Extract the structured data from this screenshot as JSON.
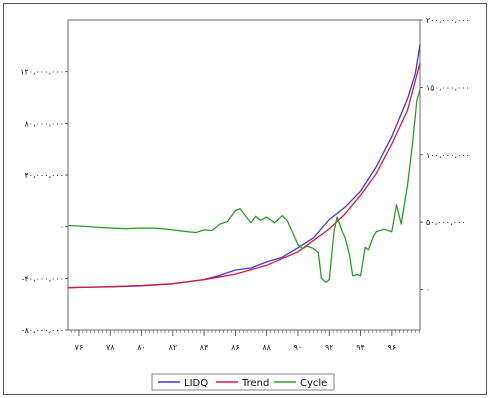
{
  "chart_data": {
    "type": "line",
    "title": "",
    "xlabel": "",
    "ylabel": "",
    "grid": false,
    "legend_position": "bottom",
    "x": [
      76,
      78,
      80,
      82,
      84,
      86,
      88,
      90,
      92,
      94,
      96,
      97
    ],
    "x_ticks": [
      "۷۶",
      "۷۸",
      "۸۰",
      "۸۲",
      "۸۴",
      "۸۶",
      "۸۸",
      "۹۰",
      "۹۲",
      "۹۴",
      "۹۶"
    ],
    "x_tick_values": [
      76,
      78,
      80,
      82,
      84,
      86,
      88,
      90,
      92,
      94,
      96
    ],
    "xlim": [
      75.3,
      97.8
    ],
    "left_axis": {
      "ylim": [
        -80000000,
        160000000
      ],
      "ticks": [
        {
          "v": 120000000,
          "label": "۱۲۰،۰۰۰،۰۰۰"
        },
        {
          "v": 80000000,
          "label": "۸۰،۰۰۰،۰۰۰"
        },
        {
          "v": 40000000,
          "label": "۴۰،۰۰۰،۰۰۰"
        },
        {
          "v": 0,
          "label": "۰"
        },
        {
          "v": -40000000,
          "label": "-۴۰،۰۰۰،۰۰۰"
        },
        {
          "v": -80000000,
          "label": "-۸۰،۰۰۰،۰۰۰"
        }
      ]
    },
    "right_axis": {
      "ylim": [
        -30000000,
        200000000
      ],
      "ticks": [
        {
          "v": 200000000,
          "label": "۲۰۰،۰۰۰،۰۰۰"
        },
        {
          "v": 150000000,
          "label": "۱۵۰،۰۰۰،۰۰۰"
        },
        {
          "v": 100000000,
          "label": "۱۰۰،۰۰۰،۰۰۰"
        },
        {
          "v": 50000000,
          "label": "۵۰،۰۰۰،۰۰۰"
        },
        {
          "v": 0,
          "label": "۰"
        }
      ]
    },
    "series": [
      {
        "name": "LIDQ",
        "axis": "right",
        "color": "#3b3bd6",
        "points": [
          [
            75.3,
            1500000
          ],
          [
            76,
            1700000
          ],
          [
            78,
            2000000
          ],
          [
            80,
            2700000
          ],
          [
            82,
            4200000
          ],
          [
            84,
            7500000
          ],
          [
            85,
            10500000
          ],
          [
            86,
            14500000
          ],
          [
            87,
            16000000
          ],
          [
            88,
            20500000
          ],
          [
            89,
            24000000
          ],
          [
            90,
            31000000
          ],
          [
            91,
            38500000
          ],
          [
            92,
            52000000
          ],
          [
            93,
            61000000
          ],
          [
            94,
            73000000
          ],
          [
            95,
            91000000
          ],
          [
            96,
            113500000
          ],
          [
            97,
            141500000
          ],
          [
            97.5,
            160000000
          ],
          [
            97.8,
            182000000
          ]
        ]
      },
      {
        "name": "Trend",
        "axis": "right",
        "color": "#d81b3b",
        "points": [
          [
            75.3,
            1200000
          ],
          [
            76,
            1500000
          ],
          [
            78,
            2200000
          ],
          [
            80,
            3000000
          ],
          [
            82,
            4400000
          ],
          [
            84,
            7300000
          ],
          [
            86,
            11500000
          ],
          [
            88,
            18000000
          ],
          [
            90,
            28000000
          ],
          [
            92,
            45000000
          ],
          [
            93,
            56000000
          ],
          [
            94,
            70000000
          ],
          [
            95,
            86000000
          ],
          [
            96,
            108000000
          ],
          [
            97,
            133000000
          ],
          [
            97.8,
            168000000
          ]
        ]
      },
      {
        "name": "Cycle",
        "axis": "left",
        "color": "#2e9a2e",
        "points": [
          [
            75.3,
            800000
          ],
          [
            76,
            500000
          ],
          [
            77,
            -300000
          ],
          [
            78,
            -1000000
          ],
          [
            79,
            -1600000
          ],
          [
            80,
            -1000000
          ],
          [
            81,
            -1200000
          ],
          [
            82,
            -2500000
          ],
          [
            83,
            -4000000
          ],
          [
            83.5,
            -4500000
          ],
          [
            84,
            -2500000
          ],
          [
            84.5,
            -3000000
          ],
          [
            85,
            2000000
          ],
          [
            85.5,
            4000000
          ],
          [
            86,
            12500000
          ],
          [
            86.3,
            14000000
          ],
          [
            86.6,
            9000000
          ],
          [
            87,
            3000000
          ],
          [
            87.3,
            8000000
          ],
          [
            87.6,
            5000000
          ],
          [
            88,
            7500000
          ],
          [
            88.5,
            3000000
          ],
          [
            89,
            8500000
          ],
          [
            89.3,
            5000000
          ],
          [
            89.6,
            -3000000
          ],
          [
            90,
            -14000000
          ],
          [
            90.3,
            -17000000
          ],
          [
            90.6,
            -15000000
          ],
          [
            91,
            -17000000
          ],
          [
            91.3,
            -20000000
          ],
          [
            91.5,
            -40000000
          ],
          [
            91.8,
            -43000000
          ],
          [
            92,
            -41000000
          ],
          [
            92.3,
            -4000000
          ],
          [
            92.5,
            7500000
          ],
          [
            92.8,
            -3000000
          ],
          [
            93,
            -8000000
          ],
          [
            93.3,
            -22000000
          ],
          [
            93.5,
            -38000000
          ],
          [
            93.8,
            -37000000
          ],
          [
            94,
            -38000000
          ],
          [
            94.3,
            -16000000
          ],
          [
            94.5,
            -18000000
          ],
          [
            94.8,
            -8000000
          ],
          [
            95,
            -4000000
          ],
          [
            95.5,
            -2000000
          ],
          [
            96,
            -4000000
          ],
          [
            96.3,
            17000000
          ],
          [
            96.6,
            2000000
          ],
          [
            97,
            32000000
          ],
          [
            97.3,
            62000000
          ],
          [
            97.6,
            98000000
          ],
          [
            97.8,
            106000000
          ]
        ]
      }
    ]
  }
}
